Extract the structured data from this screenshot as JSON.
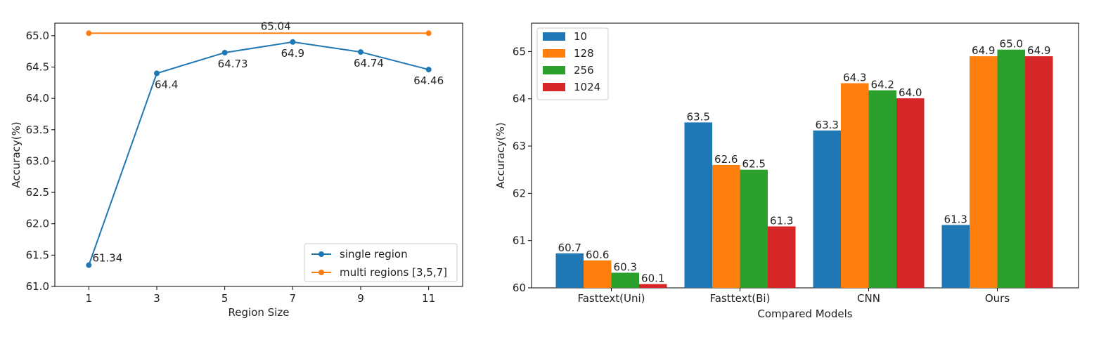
{
  "chart_data": [
    {
      "type": "line",
      "title": "",
      "xlabel": "Region Size",
      "ylabel": "Accuracy(%)",
      "x": [
        1,
        3,
        5,
        7,
        9,
        11
      ],
      "xlim": [
        0,
        12
      ],
      "ylim": [
        61.0,
        65.2
      ],
      "yticks": [
        61.0,
        61.5,
        62.0,
        62.5,
        63.0,
        63.5,
        64.0,
        64.5,
        65.0
      ],
      "ytick_labels": [
        "61.0",
        "61.5",
        "62.0",
        "62.5",
        "63.0",
        "63.5",
        "64.0",
        "64.5",
        "65.0"
      ],
      "xtick_labels": [
        "1",
        "3",
        "5",
        "7",
        "9",
        "11"
      ],
      "grid": false,
      "legend_position": "bottom-right",
      "series": [
        {
          "name": "single region",
          "color": "#1f77b4",
          "values": [
            61.34,
            64.4,
            64.73,
            64.9,
            64.74,
            64.46
          ],
          "labels": [
            "61.34",
            "64.4",
            "64.73",
            "64.9",
            "64.74",
            "64.46"
          ]
        },
        {
          "name": "multi regions [3,5,7]",
          "color": "#ff7f0e",
          "values": [
            65.04,
            65.04,
            65.04,
            65.04,
            65.04,
            65.04
          ],
          "annotation": "65.04"
        }
      ]
    },
    {
      "type": "bar",
      "title": "",
      "xlabel": "Compared Models",
      "ylabel": "Accuracy(%)",
      "categories": [
        "Fasttext(Uni)",
        "Fasttext(Bi)",
        "CNN",
        "Ours"
      ],
      "ylim": [
        60,
        65.6
      ],
      "yticks": [
        60,
        61,
        62,
        63,
        64,
        65
      ],
      "ytick_labels": [
        "60",
        "61",
        "62",
        "63",
        "64",
        "65"
      ],
      "grid": false,
      "legend_position": "top-left",
      "series": [
        {
          "name": "10",
          "color": "#1f77b4",
          "values": [
            60.73,
            63.5,
            63.33,
            61.33
          ],
          "labels": [
            "60.7",
            "63.5",
            "63.3",
            "61.3"
          ]
        },
        {
          "name": "128",
          "color": "#ff7f0e",
          "values": [
            60.58,
            62.6,
            64.33,
            64.9
          ],
          "labels": [
            "60.6",
            "62.6",
            "64.3",
            "64.9"
          ]
        },
        {
          "name": "256",
          "color": "#2ca02c",
          "values": [
            60.32,
            62.5,
            64.18,
            65.04
          ],
          "labels": [
            "60.3",
            "62.5",
            "64.2",
            "65.0"
          ]
        },
        {
          "name": "1024",
          "color": "#d62728",
          "values": [
            60.08,
            61.3,
            64.01,
            64.9
          ],
          "labels": [
            "60.1",
            "61.3",
            "64.0",
            "64.9"
          ]
        }
      ]
    }
  ]
}
